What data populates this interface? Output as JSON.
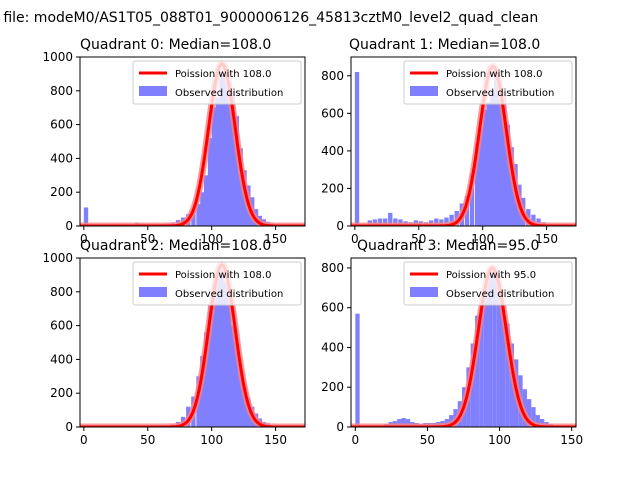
{
  "suptitle": "n file: modeM0/AS1T05_088T01_9000006126_45813cztM0_level2_quad_clean",
  "colors": {
    "bar": "#8080ff",
    "line": "#ff0000",
    "line_alpha_band": "#ff8080",
    "axes": "#000000"
  },
  "chart_data": [
    {
      "type": "bar",
      "title": "Quadrant 0: Median=108.0",
      "xlim": [
        -3,
        173
      ],
      "ylim": [
        0,
        1000
      ],
      "xticks": [
        0,
        50,
        100,
        150
      ],
      "yticks": [
        0,
        200,
        400,
        600,
        800,
        1000
      ],
      "bin_width": 3.4,
      "series": [
        {
          "name": "Observed distribution",
          "x": [
            0,
            40,
            44,
            48,
            52,
            56,
            60,
            64,
            68,
            72,
            76,
            80,
            84,
            88,
            91,
            94,
            97,
            100,
            103,
            106,
            109,
            112,
            115,
            118,
            121,
            124,
            127,
            130,
            133,
            136,
            139,
            142,
            145,
            148,
            151,
            154,
            158
          ],
          "values": [
            110,
            20,
            15,
            10,
            8,
            10,
            12,
            15,
            20,
            35,
            50,
            70,
            90,
            130,
            200,
            300,
            520,
            700,
            760,
            900,
            950,
            850,
            800,
            650,
            460,
            330,
            240,
            170,
            100,
            60,
            40,
            25,
            15,
            10,
            6,
            4,
            2
          ]
        }
      ],
      "poisson": {
        "name": "Poission with 108.0",
        "mean": 108.0,
        "peak": 960
      },
      "legend": "top-right"
    },
    {
      "type": "bar",
      "title": "Quadrant 1: Median=108.0",
      "xlim": [
        -3,
        173
      ],
      "ylim": [
        0,
        900
      ],
      "xticks": [
        0,
        50,
        100,
        150
      ],
      "yticks": [
        0,
        200,
        400,
        600,
        800
      ],
      "bin_width": 3.4,
      "series": [
        {
          "name": "Observed distribution",
          "x": [
            0,
            10,
            14,
            18,
            22,
            26,
            30,
            34,
            38,
            42,
            46,
            50,
            54,
            58,
            62,
            66,
            70,
            74,
            78,
            82,
            86,
            90,
            94,
            97,
            100,
            103,
            106,
            109,
            112,
            115,
            118,
            121,
            124,
            127,
            130,
            134,
            138,
            142,
            146,
            150
          ],
          "values": [
            820,
            30,
            35,
            40,
            40,
            70,
            40,
            35,
            25,
            20,
            30,
            25,
            20,
            30,
            40,
            35,
            45,
            60,
            80,
            120,
            160,
            280,
            440,
            520,
            620,
            660,
            720,
            800,
            780,
            700,
            540,
            420,
            330,
            220,
            150,
            90,
            60,
            40,
            20,
            10
          ]
        }
      ],
      "poisson": {
        "name": "Poission with 108.0",
        "mean": 108.0,
        "peak": 850
      },
      "legend": "top-right"
    },
    {
      "type": "bar",
      "title": "Quadrant 2: Median=108.0",
      "xlim": [
        -3,
        173
      ],
      "ylim": [
        0,
        1000
      ],
      "xticks": [
        0,
        50,
        100,
        150
      ],
      "yticks": [
        0,
        200,
        400,
        600,
        800,
        1000
      ],
      "bin_width": 3.4,
      "series": [
        {
          "name": "Observed distribution",
          "x": [
            60,
            64,
            68,
            72,
            76,
            80,
            84,
            88,
            91,
            94,
            97,
            100,
            103,
            106,
            109,
            112,
            115,
            118,
            121,
            124,
            127,
            130,
            133,
            136,
            139,
            142,
            145,
            148
          ],
          "values": [
            5,
            10,
            15,
            30,
            60,
            120,
            180,
            300,
            420,
            560,
            720,
            780,
            900,
            950,
            860,
            780,
            600,
            500,
            340,
            240,
            170,
            120,
            80,
            50,
            30,
            20,
            10,
            5
          ]
        }
      ],
      "poisson": {
        "name": "Poission with 108.0",
        "mean": 108.0,
        "peak": 960
      },
      "legend": "top-right"
    },
    {
      "type": "bar",
      "title": "Quadrant 3: Median=95.0",
      "xlim": [
        -3,
        153
      ],
      "ylim": [
        0,
        850
      ],
      "xticks": [
        0,
        50,
        100,
        150
      ],
      "yticks": [
        0,
        200,
        400,
        600,
        800
      ],
      "bin_width": 3.0,
      "series": [
        {
          "name": "Observed distribution",
          "x": [
            0,
            20,
            23,
            26,
            29,
            32,
            35,
            38,
            41,
            44,
            47,
            50,
            53,
            56,
            59,
            62,
            65,
            68,
            71,
            74,
            77,
            80,
            83,
            86,
            89,
            92,
            95,
            98,
            101,
            104,
            107,
            110,
            113,
            116,
            119,
            122,
            125,
            128,
            131,
            134,
            137,
            140
          ],
          "values": [
            570,
            15,
            25,
            30,
            40,
            45,
            40,
            25,
            20,
            15,
            20,
            20,
            20,
            25,
            30,
            40,
            60,
            90,
            130,
            200,
            300,
            420,
            560,
            640,
            720,
            800,
            790,
            740,
            620,
            520,
            420,
            340,
            260,
            190,
            140,
            100,
            60,
            40,
            25,
            15,
            8,
            4
          ]
        }
      ],
      "poisson": {
        "name": "Poission with 95.0",
        "mean": 95.0,
        "peak": 800
      },
      "legend": "top-right"
    }
  ]
}
